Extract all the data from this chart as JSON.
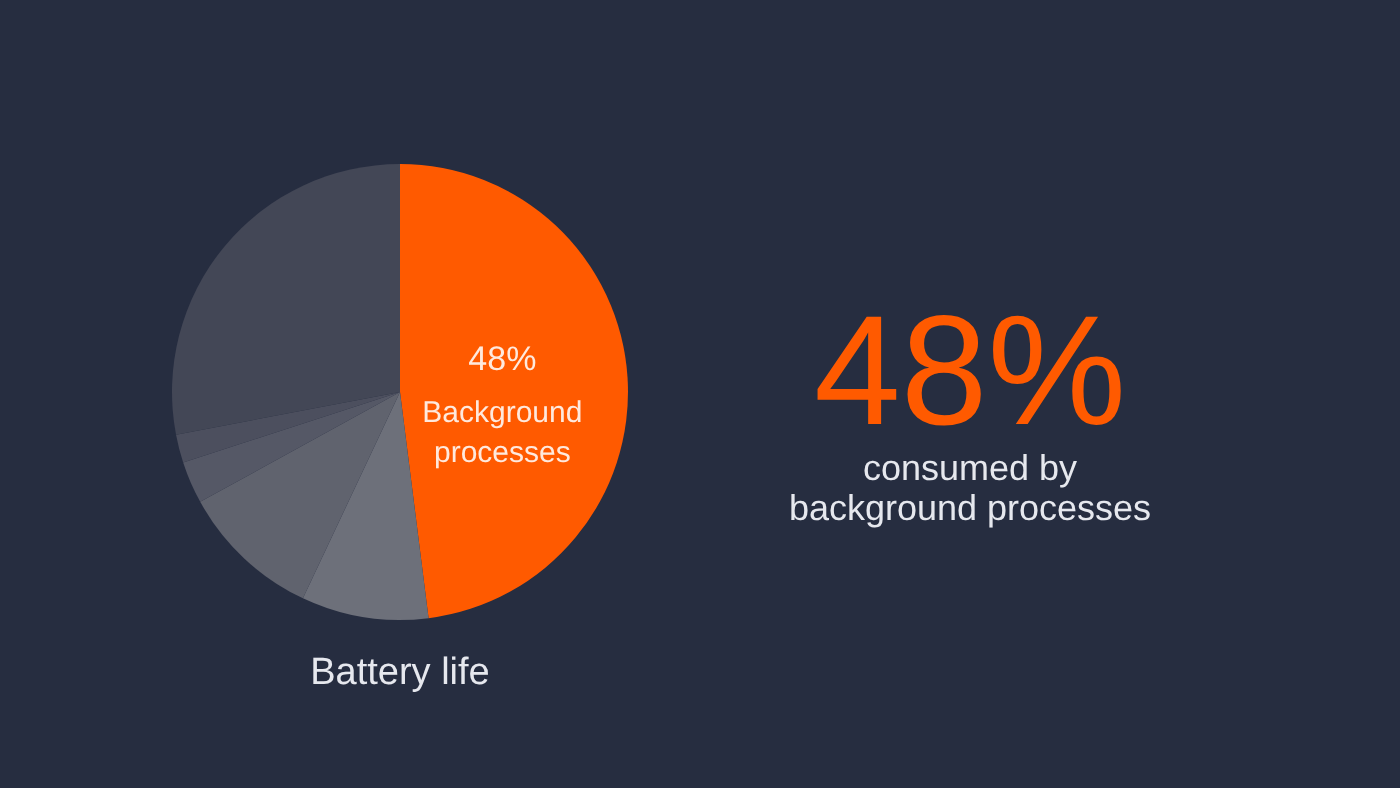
{
  "chart_data": {
    "type": "pie",
    "title": "Battery life",
    "categories": [
      "Background processes",
      null,
      null,
      null,
      null,
      null
    ],
    "values": [
      48,
      9,
      10,
      3,
      2,
      28
    ],
    "colors": [
      "#ff5a00",
      "#6d707a",
      "#60636e",
      "#555866",
      "#4c4f5e",
      "#434756"
    ],
    "value_labels": [
      "48%",
      null,
      null,
      null,
      null,
      null
    ],
    "annotations": [
      "48%",
      "consumed by",
      "background processes"
    ]
  }
}
